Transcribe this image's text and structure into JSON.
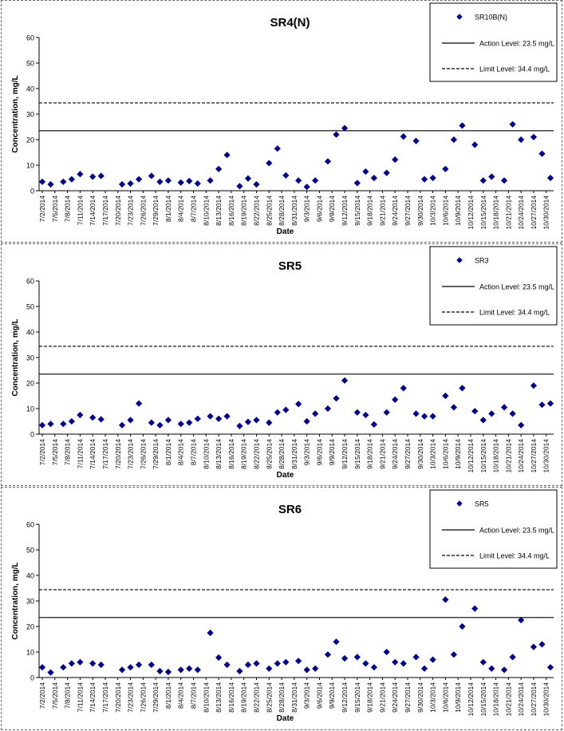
{
  "chart_data": [
    {
      "type": "scatter",
      "title": "SR4(N)",
      "xlabel": "Date",
      "ylabel": "Concentration, mg/L",
      "ylim": [
        0,
        60
      ],
      "yticks": [
        "0",
        "10",
        "20",
        "30",
        "40",
        "50",
        "60"
      ],
      "x_tick_labels": [
        "7/2/2014",
        "7/5/2014",
        "7/8/2014",
        "7/11/2014",
        "7/14/2014",
        "7/17/2014",
        "7/20/2014",
        "7/23/2014",
        "7/26/2014",
        "7/29/2014",
        "8/1/2014",
        "8/4/2014",
        "8/7/2014",
        "8/10/2014",
        "8/13/2014",
        "8/16/2014",
        "8/19/2014",
        "8/22/2014",
        "8/25/2014",
        "8/28/2014",
        "8/31/2014",
        "9/3/2014",
        "9/6/2014",
        "9/9/2014",
        "9/12/2014",
        "9/15/2014",
        "9/18/2014",
        "9/21/2014",
        "9/24/2014",
        "9/27/2014",
        "9/30/2014",
        "10/3/2014",
        "10/6/2014",
        "10/9/2014",
        "10/12/2014",
        "10/15/2014",
        "10/18/2014",
        "10/21/2014",
        "10/24/2014",
        "10/27/2014",
        "10/30/2014"
      ],
      "x_range": [
        "7/2/2014",
        "10/31/2014"
      ],
      "grid": false,
      "legend_position": "top-right",
      "series": [
        {
          "name": "SR10B(N)",
          "marker": "diamond",
          "color": "#00008b",
          "points": [
            {
              "x": "7/2/2014",
              "y": 3.5
            },
            {
              "x": "7/4/2014",
              "y": 2.5
            },
            {
              "x": "7/7/2014",
              "y": 3.5
            },
            {
              "x": "7/9/2014",
              "y": 4.5
            },
            {
              "x": "7/11/2014",
              "y": 6.5
            },
            {
              "x": "7/14/2014",
              "y": 5.5
            },
            {
              "x": "7/16/2014",
              "y": 5.8
            },
            {
              "x": "7/21/2014",
              "y": 2.5
            },
            {
              "x": "7/23/2014",
              "y": 2.8
            },
            {
              "x": "7/25/2014",
              "y": 4.5
            },
            {
              "x": "7/28/2014",
              "y": 5.8
            },
            {
              "x": "7/30/2014",
              "y": 3.5
            },
            {
              "x": "8/1/2014",
              "y": 4.0
            },
            {
              "x": "8/4/2014",
              "y": 3.2
            },
            {
              "x": "8/6/2014",
              "y": 3.8
            },
            {
              "x": "8/8/2014",
              "y": 2.8
            },
            {
              "x": "8/11/2014",
              "y": 4.0
            },
            {
              "x": "8/13/2014",
              "y": 8.5
            },
            {
              "x": "8/15/2014",
              "y": 14.0
            },
            {
              "x": "8/18/2014",
              "y": 1.8
            },
            {
              "x": "8/20/2014",
              "y": 4.8
            },
            {
              "x": "8/22/2014",
              "y": 2.5
            },
            {
              "x": "8/25/2014",
              "y": 10.8
            },
            {
              "x": "8/27/2014",
              "y": 16.5
            },
            {
              "x": "8/29/2014",
              "y": 6.0
            },
            {
              "x": "9/1/2014",
              "y": 4.0
            },
            {
              "x": "9/3/2014",
              "y": 1.5
            },
            {
              "x": "9/5/2014",
              "y": 4.0
            },
            {
              "x": "9/8/2014",
              "y": 11.5
            },
            {
              "x": "9/10/2014",
              "y": 22.0
            },
            {
              "x": "9/12/2014",
              "y": 24.5
            },
            {
              "x": "9/15/2014",
              "y": 3.0
            },
            {
              "x": "9/17/2014",
              "y": 7.5
            },
            {
              "x": "9/19/2014",
              "y": 5.0
            },
            {
              "x": "9/22/2014",
              "y": 7.0
            },
            {
              "x": "9/24/2014",
              "y": 12.2
            },
            {
              "x": "9/26/2014",
              "y": 21.2
            },
            {
              "x": "9/29/2014",
              "y": 19.5
            },
            {
              "x": "10/1/2014",
              "y": 4.5
            },
            {
              "x": "10/3/2014",
              "y": 5.0
            },
            {
              "x": "10/6/2014",
              "y": 8.5
            },
            {
              "x": "10/8/2014",
              "y": 20.0
            },
            {
              "x": "10/10/2014",
              "y": 25.5
            },
            {
              "x": "10/13/2014",
              "y": 18.0
            },
            {
              "x": "10/15/2014",
              "y": 4.0
            },
            {
              "x": "10/17/2014",
              "y": 5.5
            },
            {
              "x": "10/20/2014",
              "y": 4.0
            },
            {
              "x": "10/22/2014",
              "y": 26.0
            },
            {
              "x": "10/24/2014",
              "y": 20.0
            },
            {
              "x": "10/27/2014",
              "y": 21.0
            },
            {
              "x": "10/29/2014",
              "y": 14.5
            },
            {
              "x": "10/31/2014",
              "y": 5.0
            }
          ]
        }
      ],
      "reference_lines": [
        {
          "name": "Action Level: 23.5 mg/L",
          "y": 23.5,
          "style": "solid"
        },
        {
          "name": "Limit Level: 34.4 mg/L",
          "y": 34.4,
          "style": "dashed"
        }
      ]
    },
    {
      "type": "scatter",
      "title": "SR5",
      "xlabel": "Date",
      "ylabel": "Concentration, mg/L",
      "ylim": [
        0,
        60
      ],
      "yticks": [
        "0",
        "10",
        "20",
        "30",
        "40",
        "50",
        "60"
      ],
      "x_tick_labels": [
        "7/2/2014",
        "7/5/2014",
        "7/8/2014",
        "7/11/2014",
        "7/14/2014",
        "7/17/2014",
        "7/20/2014",
        "7/23/2014",
        "7/26/2014",
        "7/29/2014",
        "8/1/2014",
        "8/4/2014",
        "8/7/2014",
        "8/10/2014",
        "8/13/2014",
        "8/16/2014",
        "8/19/2014",
        "8/22/2014",
        "8/25/2014",
        "8/28/2014",
        "8/31/2014",
        "9/3/2014",
        "9/6/2014",
        "9/9/2014",
        "9/12/2014",
        "9/15/2014",
        "9/18/2014",
        "9/21/2014",
        "9/24/2014",
        "9/27/2014",
        "9/30/2014",
        "10/3/2014",
        "10/6/2014",
        "10/9/2014",
        "10/12/2014",
        "10/15/2014",
        "10/18/2014",
        "10/21/2014",
        "10/24/2014",
        "10/27/2014",
        "10/30/2014"
      ],
      "x_range": [
        "7/2/2014",
        "10/31/2014"
      ],
      "grid": false,
      "legend_position": "top-right",
      "series": [
        {
          "name": "SR3",
          "marker": "diamond",
          "color": "#00008b",
          "points": [
            {
              "x": "7/2/2014",
              "y": 3.5
            },
            {
              "x": "7/4/2014",
              "y": 4.0
            },
            {
              "x": "7/7/2014",
              "y": 4.0
            },
            {
              "x": "7/9/2014",
              "y": 5.0
            },
            {
              "x": "7/11/2014",
              "y": 7.5
            },
            {
              "x": "7/14/2014",
              "y": 6.5
            },
            {
              "x": "7/16/2014",
              "y": 5.8
            },
            {
              "x": "7/21/2014",
              "y": 3.5
            },
            {
              "x": "7/23/2014",
              "y": 5.5
            },
            {
              "x": "7/25/2014",
              "y": 12.0
            },
            {
              "x": "7/28/2014",
              "y": 4.5
            },
            {
              "x": "7/30/2014",
              "y": 3.5
            },
            {
              "x": "8/1/2014",
              "y": 5.5
            },
            {
              "x": "8/4/2014",
              "y": 4.0
            },
            {
              "x": "8/6/2014",
              "y": 4.5
            },
            {
              "x": "8/8/2014",
              "y": 6.0
            },
            {
              "x": "8/11/2014",
              "y": 7.0
            },
            {
              "x": "8/13/2014",
              "y": 6.0
            },
            {
              "x": "8/15/2014",
              "y": 7.0
            },
            {
              "x": "8/18/2014",
              "y": 3.2
            },
            {
              "x": "8/20/2014",
              "y": 4.8
            },
            {
              "x": "8/22/2014",
              "y": 5.5
            },
            {
              "x": "8/25/2014",
              "y": 4.5
            },
            {
              "x": "8/27/2014",
              "y": 8.5
            },
            {
              "x": "8/29/2014",
              "y": 9.5
            },
            {
              "x": "9/1/2014",
              "y": 11.8
            },
            {
              "x": "9/3/2014",
              "y": 5.0
            },
            {
              "x": "9/5/2014",
              "y": 8.0
            },
            {
              "x": "9/8/2014",
              "y": 10.0
            },
            {
              "x": "9/10/2014",
              "y": 14.0
            },
            {
              "x": "9/12/2014",
              "y": 21.0
            },
            {
              "x": "9/15/2014",
              "y": 8.5
            },
            {
              "x": "9/17/2014",
              "y": 7.5
            },
            {
              "x": "9/19/2014",
              "y": 3.8
            },
            {
              "x": "9/22/2014",
              "y": 8.5
            },
            {
              "x": "9/24/2014",
              "y": 13.5
            },
            {
              "x": "9/26/2014",
              "y": 18.0
            },
            {
              "x": "9/29/2014",
              "y": 8.0
            },
            {
              "x": "10/1/2014",
              "y": 7.0
            },
            {
              "x": "10/3/2014",
              "y": 7.0
            },
            {
              "x": "10/6/2014",
              "y": 15.0
            },
            {
              "x": "10/8/2014",
              "y": 10.5
            },
            {
              "x": "10/10/2014",
              "y": 18.0
            },
            {
              "x": "10/13/2014",
              "y": 9.0
            },
            {
              "x": "10/15/2014",
              "y": 5.5
            },
            {
              "x": "10/17/2014",
              "y": 8.0
            },
            {
              "x": "10/20/2014",
              "y": 10.5
            },
            {
              "x": "10/22/2014",
              "y": 8.0
            },
            {
              "x": "10/24/2014",
              "y": 3.5
            },
            {
              "x": "10/27/2014",
              "y": 19.0
            },
            {
              "x": "10/29/2014",
              "y": 11.5
            },
            {
              "x": "10/31/2014",
              "y": 12.0
            }
          ]
        }
      ],
      "reference_lines": [
        {
          "name": "Action Level: 23.5 mg/L",
          "y": 23.5,
          "style": "solid"
        },
        {
          "name": "Limit Level: 34.4 mg/L",
          "y": 34.4,
          "style": "dashed"
        }
      ]
    },
    {
      "type": "scatter",
      "title": "SR6",
      "xlabel": "Date",
      "ylabel": "Concentration, mg/L",
      "ylim": [
        0,
        60
      ],
      "yticks": [
        "0",
        "10",
        "20",
        "30",
        "40",
        "50",
        "60"
      ],
      "x_tick_labels": [
        "7/2/2014",
        "7/5/2014",
        "7/8/2014",
        "7/11/2014",
        "7/14/2014",
        "7/17/2014",
        "7/20/2014",
        "7/23/2014",
        "7/26/2014",
        "7/29/2014",
        "8/1/2014",
        "8/4/2014",
        "8/7/2014",
        "8/10/2014",
        "8/13/2014",
        "8/16/2014",
        "8/19/2014",
        "8/22/2014",
        "8/25/2014",
        "8/28/2014",
        "8/31/2014",
        "9/3/2014",
        "9/6/2014",
        "9/9/2014",
        "9/12/2014",
        "9/15/2014",
        "9/18/2014",
        "9/21/2014",
        "9/24/2014",
        "9/27/2014",
        "9/30/2014",
        "10/3/2014",
        "10/6/2014",
        "10/9/2014",
        "10/12/2014",
        "10/15/2014",
        "10/18/2014",
        "10/21/2014",
        "10/24/2014",
        "10/27/2014",
        "10/30/2014"
      ],
      "x_range": [
        "7/2/2014",
        "10/31/2014"
      ],
      "grid": false,
      "legend_position": "top-right",
      "series": [
        {
          "name": "SR5",
          "marker": "diamond",
          "color": "#00008b",
          "points": [
            {
              "x": "7/2/2014",
              "y": 4.0
            },
            {
              "x": "7/4/2014",
              "y": 2.0
            },
            {
              "x": "7/7/2014",
              "y": 4.0
            },
            {
              "x": "7/9/2014",
              "y": 5.5
            },
            {
              "x": "7/11/2014",
              "y": 6.0
            },
            {
              "x": "7/14/2014",
              "y": 5.5
            },
            {
              "x": "7/16/2014",
              "y": 5.0
            },
            {
              "x": "7/21/2014",
              "y": 3.0
            },
            {
              "x": "7/23/2014",
              "y": 4.0
            },
            {
              "x": "7/25/2014",
              "y": 5.0
            },
            {
              "x": "7/28/2014",
              "y": 5.0
            },
            {
              "x": "7/30/2014",
              "y": 2.5
            },
            {
              "x": "8/1/2014",
              "y": 2.2
            },
            {
              "x": "8/4/2014",
              "y": 3.0
            },
            {
              "x": "8/6/2014",
              "y": 3.5
            },
            {
              "x": "8/8/2014",
              "y": 3.0
            },
            {
              "x": "8/11/2014",
              "y": 17.5
            },
            {
              "x": "8/13/2014",
              "y": 7.8
            },
            {
              "x": "8/15/2014",
              "y": 5.0
            },
            {
              "x": "8/18/2014",
              "y": 2.5
            },
            {
              "x": "8/20/2014",
              "y": 5.0
            },
            {
              "x": "8/22/2014",
              "y": 5.5
            },
            {
              "x": "8/25/2014",
              "y": 3.5
            },
            {
              "x": "8/27/2014",
              "y": 5.5
            },
            {
              "x": "8/29/2014",
              "y": 6.0
            },
            {
              "x": "9/1/2014",
              "y": 6.5
            },
            {
              "x": "9/3/2014",
              "y": 3.0
            },
            {
              "x": "9/5/2014",
              "y": 3.5
            },
            {
              "x": "9/8/2014",
              "y": 9.0
            },
            {
              "x": "9/10/2014",
              "y": 14.0
            },
            {
              "x": "9/12/2014",
              "y": 7.5
            },
            {
              "x": "9/15/2014",
              "y": 8.0
            },
            {
              "x": "9/17/2014",
              "y": 5.5
            },
            {
              "x": "9/19/2014",
              "y": 4.0
            },
            {
              "x": "9/22/2014",
              "y": 10.0
            },
            {
              "x": "9/24/2014",
              "y": 6.0
            },
            {
              "x": "9/26/2014",
              "y": 5.5
            },
            {
              "x": "9/29/2014",
              "y": 8.0
            },
            {
              "x": "10/1/2014",
              "y": 3.5
            },
            {
              "x": "10/3/2014",
              "y": 7.0
            },
            {
              "x": "10/6/2014",
              "y": 30.5
            },
            {
              "x": "10/8/2014",
              "y": 9.0
            },
            {
              "x": "10/10/2014",
              "y": 20.0
            },
            {
              "x": "10/13/2014",
              "y": 27.0
            },
            {
              "x": "10/15/2014",
              "y": 6.0
            },
            {
              "x": "10/17/2014",
              "y": 3.5
            },
            {
              "x": "10/20/2014",
              "y": 3.0
            },
            {
              "x": "10/22/2014",
              "y": 8.0
            },
            {
              "x": "10/24/2014",
              "y": 22.5
            },
            {
              "x": "10/27/2014",
              "y": 12.0
            },
            {
              "x": "10/29/2014",
              "y": 13.0
            },
            {
              "x": "10/31/2014",
              "y": 4.0
            }
          ]
        }
      ],
      "reference_lines": [
        {
          "name": "Action Level: 23.5 mg/L",
          "y": 23.5,
          "style": "solid"
        },
        {
          "name": "Limit Level: 34.4 mg/L",
          "y": 34.4,
          "style": "dashed"
        }
      ]
    }
  ]
}
